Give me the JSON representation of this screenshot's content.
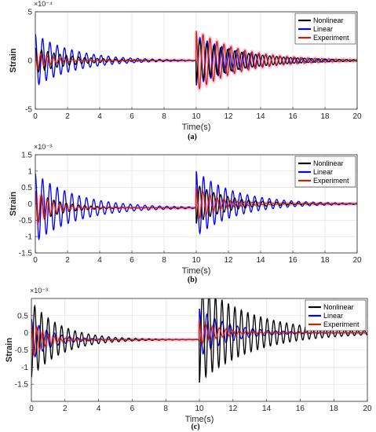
{
  "chart_data": [
    {
      "id": "a",
      "type": "line",
      "caption": "(a)",
      "xlabel": "Time(s)",
      "ylabel": "Strain",
      "exponent_label": "×10⁻⁴",
      "xlim": [
        0,
        20
      ],
      "ylim": [
        -5,
        5
      ],
      "xticks": [
        0,
        2,
        4,
        6,
        8,
        10,
        12,
        14,
        16,
        18,
        20
      ],
      "yticks": [
        -5,
        0,
        5
      ],
      "legend_position": "top-right",
      "legend": [
        "Nonlinear",
        "Linear",
        "Experiment"
      ],
      "colors": {
        "Nonlinear": "#000000",
        "Linear": "#0000ff",
        "Experiment": "#cc2200",
        "Experiment_band": "#f0a0d8"
      },
      "series": [
        {
          "name": "Nonlinear",
          "events": [
            {
              "t": 0,
              "amp": 1.3,
              "decay": 2.2,
              "freq": 2.6,
              "phase": 0
            },
            {
              "t": 10,
              "amp": -2.2,
              "decay": 3.0,
              "freq": 2.3,
              "phase": 0
            }
          ]
        },
        {
          "name": "Linear",
          "events": [
            {
              "t": 0,
              "amp": 2.7,
              "decay": 2.5,
              "freq": 2.2,
              "phase": 0
            },
            {
              "t": 10,
              "amp": -2.6,
              "decay": 2.8,
              "freq": 2.2,
              "phase": 0
            }
          ]
        },
        {
          "name": "Experiment",
          "events": [
            {
              "t": 0,
              "amp": 1.0,
              "decay": 1.0,
              "freq": 2.6,
              "phase": 0.5
            },
            {
              "t": 10,
              "amp": 3.1,
              "decay": 2.8,
              "freq": 2.3,
              "phase": 0.2
            }
          ]
        }
      ]
    },
    {
      "id": "b",
      "type": "line",
      "caption": "(b)",
      "xlabel": "Time(s)",
      "ylabel": "Strain",
      "exponent_label": "×10⁻³",
      "xlim": [
        0,
        20
      ],
      "ylim": [
        -1.5,
        1.5
      ],
      "xticks": [
        0,
        2,
        4,
        6,
        8,
        10,
        12,
        14,
        16,
        18,
        20
      ],
      "yticks": [
        -1.5,
        -1,
        -0.5,
        0,
        0.5,
        1,
        1.5
      ],
      "legend_position": "top-right",
      "legend": [
        "Nonlinear",
        "Linear",
        "Experiment"
      ],
      "colors": {
        "Nonlinear": "#000000",
        "Linear": "#0000ff",
        "Experiment": "#cc2200",
        "Experiment_band": "#f0a0d8"
      },
      "series": [
        {
          "name": "Nonlinear",
          "offset_before_10": -0.12,
          "events": [
            {
              "t": 0,
              "amp": 0.5,
              "decay": 1.5,
              "freq": 2.6,
              "phase": 0
            },
            {
              "t": 10,
              "amp": -0.6,
              "decay": 2.0,
              "freq": 2.3,
              "phase": 0
            }
          ]
        },
        {
          "name": "Linear",
          "offset_before_10": -0.12,
          "events": [
            {
              "t": 0,
              "amp": 1.05,
              "decay": 2.6,
              "freq": 2.2,
              "phase": 0
            },
            {
              "t": 10,
              "amp": 0.97,
              "decay": 2.5,
              "freq": 2.2,
              "phase": 0
            }
          ]
        },
        {
          "name": "Experiment",
          "offset_before_10": -0.12,
          "events": [
            {
              "t": 0,
              "amp": 0.55,
              "decay": 1.0,
              "freq": 2.6,
              "phase": 0.3
            },
            {
              "t": 10,
              "amp": 0.5,
              "decay": 1.4,
              "freq": 2.3,
              "phase": 0.2
            }
          ]
        }
      ]
    },
    {
      "id": "c",
      "type": "line",
      "caption": "(c)",
      "xlabel": "Time(s)",
      "ylabel": "Strain",
      "exponent_label": "×10⁻³",
      "xlim": [
        0,
        20
      ],
      "ylim": [
        -2,
        1
      ],
      "xticks": [
        0,
        2,
        4,
        6,
        8,
        10,
        12,
        14,
        16,
        18,
        20
      ],
      "yticks": [
        -1.5,
        -1,
        -0.5,
        0,
        0.5
      ],
      "legend_position": "top-right",
      "legend": [
        "Nonlinear",
        "Linear",
        "Experiment"
      ],
      "colors": {
        "Nonlinear": "#000000",
        "Linear": "#0000ff",
        "Experiment": "#cc2200",
        "Experiment_band": "#f0a0d8"
      },
      "series": [
        {
          "name": "Nonlinear",
          "offset_before_10": -0.2,
          "events": [
            {
              "t": 0,
              "amp": -1.1,
              "decay": 1.8,
              "freq": 2.5,
              "phase": 0
            },
            {
              "t": 10,
              "amp": -1.45,
              "decay": 3.2,
              "freq": 2.6,
              "phase": 0
            }
          ]
        },
        {
          "name": "Linear",
          "offset_before_10": -0.2,
          "events": [
            {
              "t": 0,
              "amp": 0.6,
              "decay": 1.2,
              "freq": 2.2,
              "phase": 0
            },
            {
              "t": 10,
              "amp": 0.7,
              "decay": 1.8,
              "freq": 2.2,
              "phase": 0
            }
          ]
        },
        {
          "name": "Experiment",
          "offset_before_10": -0.2,
          "events": [
            {
              "t": 0,
              "amp": 0.55,
              "decay": 0.8,
              "freq": 2.9,
              "phase": 0.4
            },
            {
              "t": 10,
              "amp": 0.35,
              "decay": 1.3,
              "freq": 2.5,
              "phase": 0.2
            }
          ]
        }
      ]
    }
  ]
}
